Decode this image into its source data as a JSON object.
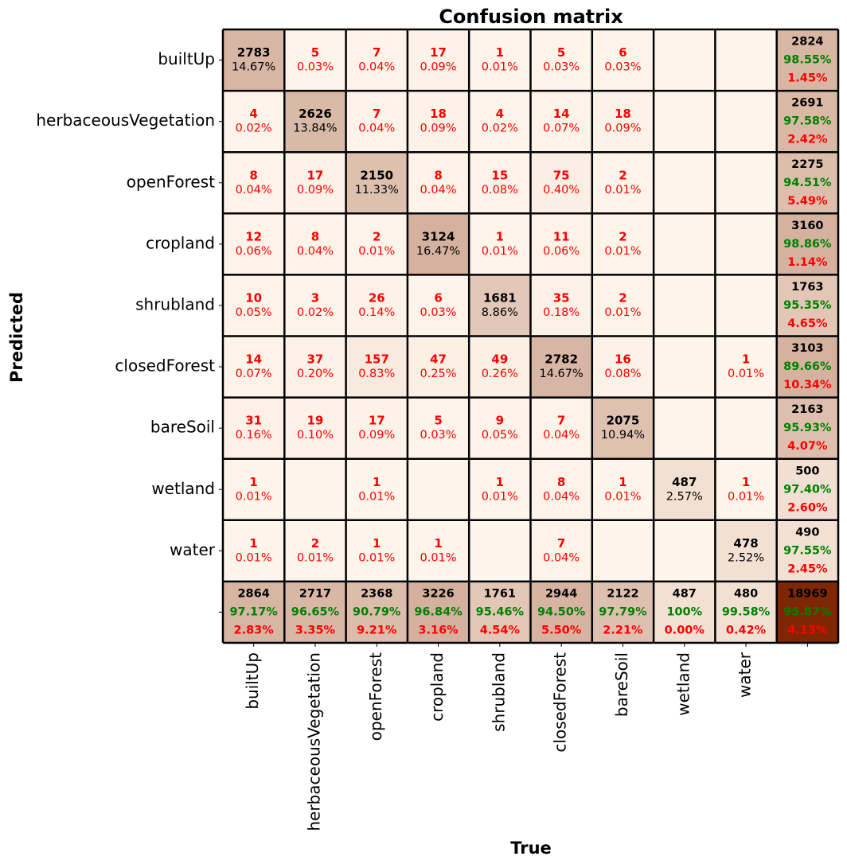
{
  "chart_data": {
    "type": "heatmap",
    "title": "Confusion matrix",
    "xlabel": "True",
    "ylabel": "Predicted",
    "classes": [
      "builtUp",
      "herbaceousVegetation",
      "openForest",
      "cropland",
      "shrubland",
      "closedForest",
      "bareSoil",
      "wetland",
      "water"
    ],
    "matrix": [
      [
        2783,
        5,
        7,
        17,
        1,
        5,
        6,
        0,
        0
      ],
      [
        4,
        2626,
        7,
        18,
        4,
        14,
        18,
        0,
        0
      ],
      [
        8,
        17,
        2150,
        8,
        15,
        75,
        2,
        0,
        0
      ],
      [
        12,
        8,
        2,
        3124,
        1,
        11,
        2,
        0,
        0
      ],
      [
        10,
        3,
        26,
        6,
        1681,
        35,
        2,
        0,
        0
      ],
      [
        14,
        37,
        157,
        47,
        49,
        2782,
        16,
        0,
        1
      ],
      [
        31,
        19,
        17,
        5,
        9,
        7,
        2075,
        0,
        0
      ],
      [
        1,
        0,
        1,
        0,
        1,
        8,
        1,
        487,
        1
      ],
      [
        1,
        2,
        1,
        1,
        0,
        7,
        0,
        0,
        478
      ]
    ],
    "cell_percent": [
      [
        "14.67%",
        "0.03%",
        "0.04%",
        "0.09%",
        "0.01%",
        "0.03%",
        "0.03%",
        "",
        ""
      ],
      [
        "0.02%",
        "13.84%",
        "0.04%",
        "0.09%",
        "0.02%",
        "0.07%",
        "0.09%",
        "",
        ""
      ],
      [
        "0.04%",
        "0.09%",
        "11.33%",
        "0.04%",
        "0.08%",
        "0.40%",
        "0.01%",
        "",
        ""
      ],
      [
        "0.06%",
        "0.04%",
        "0.01%",
        "16.47%",
        "0.01%",
        "0.06%",
        "0.01%",
        "",
        ""
      ],
      [
        "0.05%",
        "0.02%",
        "0.14%",
        "0.03%",
        "8.86%",
        "0.18%",
        "0.01%",
        "",
        ""
      ],
      [
        "0.07%",
        "0.20%",
        "0.83%",
        "0.25%",
        "0.26%",
        "14.67%",
        "0.08%",
        "",
        "0.01%"
      ],
      [
        "0.16%",
        "0.10%",
        "0.09%",
        "0.03%",
        "0.05%",
        "0.04%",
        "10.94%",
        "",
        ""
      ],
      [
        "0.01%",
        "",
        "0.01%",
        "",
        "0.01%",
        "0.04%",
        "0.01%",
        "2.57%",
        "0.01%"
      ],
      [
        "0.01%",
        "0.01%",
        "0.01%",
        "0.01%",
        "",
        "0.04%",
        "",
        "",
        "2.52%"
      ]
    ],
    "row_summary": [
      {
        "total": 2824,
        "correct_pct": "98.55%",
        "error_pct": "1.45%"
      },
      {
        "total": 2691,
        "correct_pct": "97.58%",
        "error_pct": "2.42%"
      },
      {
        "total": 2275,
        "correct_pct": "94.51%",
        "error_pct": "5.49%"
      },
      {
        "total": 3160,
        "correct_pct": "98.86%",
        "error_pct": "1.14%"
      },
      {
        "total": 1763,
        "correct_pct": "95.35%",
        "error_pct": "4.65%"
      },
      {
        "total": 3103,
        "correct_pct": "89.66%",
        "error_pct": "10.34%"
      },
      {
        "total": 2163,
        "correct_pct": "95.93%",
        "error_pct": "4.07%"
      },
      {
        "total": 500,
        "correct_pct": "97.40%",
        "error_pct": "2.60%"
      },
      {
        "total": 490,
        "correct_pct": "97.55%",
        "error_pct": "2.45%"
      }
    ],
    "col_summary": [
      {
        "total": 2864,
        "correct_pct": "97.17%",
        "error_pct": "2.83%"
      },
      {
        "total": 2717,
        "correct_pct": "96.65%",
        "error_pct": "3.35%"
      },
      {
        "total": 2368,
        "correct_pct": "90.79%",
        "error_pct": "9.21%"
      },
      {
        "total": 3226,
        "correct_pct": "96.84%",
        "error_pct": "3.16%"
      },
      {
        "total": 1761,
        "correct_pct": "95.46%",
        "error_pct": "4.54%"
      },
      {
        "total": 2944,
        "correct_pct": "94.50%",
        "error_pct": "5.50%"
      },
      {
        "total": 2122,
        "correct_pct": "97.79%",
        "error_pct": "2.21%"
      },
      {
        "total": 487,
        "correct_pct": "100%",
        "error_pct": "0.00%"
      },
      {
        "total": 480,
        "correct_pct": "99.58%",
        "error_pct": "0.42%"
      }
    ],
    "overall": {
      "total": 18969,
      "correct_pct": "95.87%",
      "error_pct": "4.13%"
    },
    "colormap": [
      "#fff5eb",
      "#7f2704"
    ],
    "text_colors": {
      "count": "#000000",
      "off_diagonal": "#ff0000",
      "correct": "#008000",
      "error": "#ff0000"
    },
    "grid": false
  }
}
